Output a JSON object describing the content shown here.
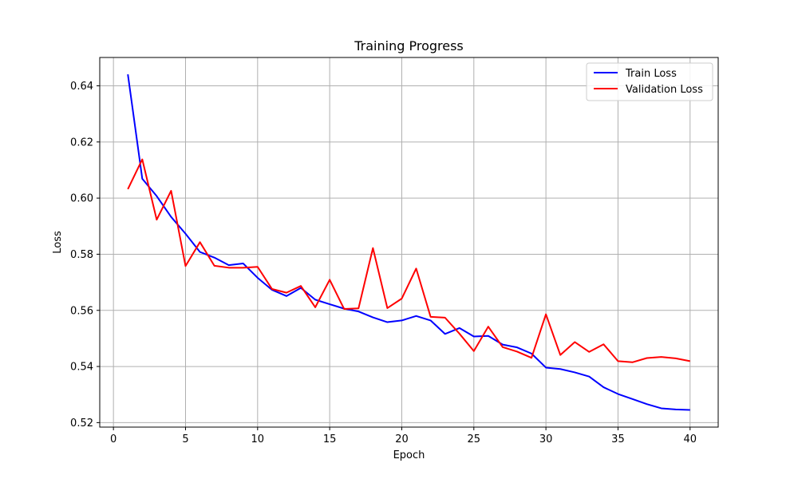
{
  "chart_data": {
    "type": "line",
    "title": "Training Progress",
    "xlabel": "Epoch",
    "ylabel": "Loss",
    "xlim": [
      -0.95,
      41.95
    ],
    "ylim": [
      0.5184,
      0.6501
    ],
    "xticks": [
      0,
      5,
      10,
      15,
      20,
      25,
      30,
      35,
      40
    ],
    "yticks": [
      0.52,
      0.54,
      0.56,
      0.58,
      0.6,
      0.62,
      0.64
    ],
    "xtick_labels": [
      "0",
      "5",
      "10",
      "15",
      "20",
      "25",
      "30",
      "35",
      "40"
    ],
    "ytick_labels": [
      "0.52",
      "0.54",
      "0.56",
      "0.58",
      "0.60",
      "0.62",
      "0.64"
    ],
    "grid": true,
    "legend_position": "top-right",
    "x": [
      1,
      2,
      3,
      4,
      5,
      6,
      7,
      8,
      9,
      10,
      11,
      12,
      13,
      14,
      15,
      16,
      17,
      18,
      19,
      20,
      21,
      22,
      23,
      24,
      25,
      26,
      27,
      28,
      29,
      30,
      31,
      32,
      33,
      34,
      35,
      36,
      37,
      38,
      39,
      40
    ],
    "series": [
      {
        "name": "Train Loss",
        "color": "#0000ff",
        "values": [
          0.6441,
          0.6069,
          0.6007,
          0.5933,
          0.5873,
          0.5808,
          0.5788,
          0.5761,
          0.5767,
          0.5716,
          0.5673,
          0.5651,
          0.568,
          0.5638,
          0.5622,
          0.5606,
          0.5596,
          0.5575,
          0.5558,
          0.5564,
          0.558,
          0.5564,
          0.5516,
          0.5537,
          0.5507,
          0.5509,
          0.5478,
          0.5468,
          0.5446,
          0.5396,
          0.5391,
          0.5379,
          0.5364,
          0.5326,
          0.5302,
          0.5284,
          0.5266,
          0.5251,
          0.5247,
          0.5245
        ]
      },
      {
        "name": "Validation Loss",
        "color": "#ff0000",
        "values": [
          0.6032,
          0.6138,
          0.5923,
          0.6026,
          0.5758,
          0.5843,
          0.5759,
          0.5752,
          0.5752,
          0.5755,
          0.5676,
          0.5663,
          0.5687,
          0.5611,
          0.5709,
          0.5605,
          0.5607,
          0.5822,
          0.5608,
          0.5642,
          0.5749,
          0.5577,
          0.5574,
          0.5517,
          0.5455,
          0.5542,
          0.5469,
          0.5453,
          0.5431,
          0.5586,
          0.5441,
          0.5487,
          0.5452,
          0.5479,
          0.5419,
          0.5415,
          0.543,
          0.5434,
          0.5429,
          0.5419
        ]
      }
    ]
  }
}
